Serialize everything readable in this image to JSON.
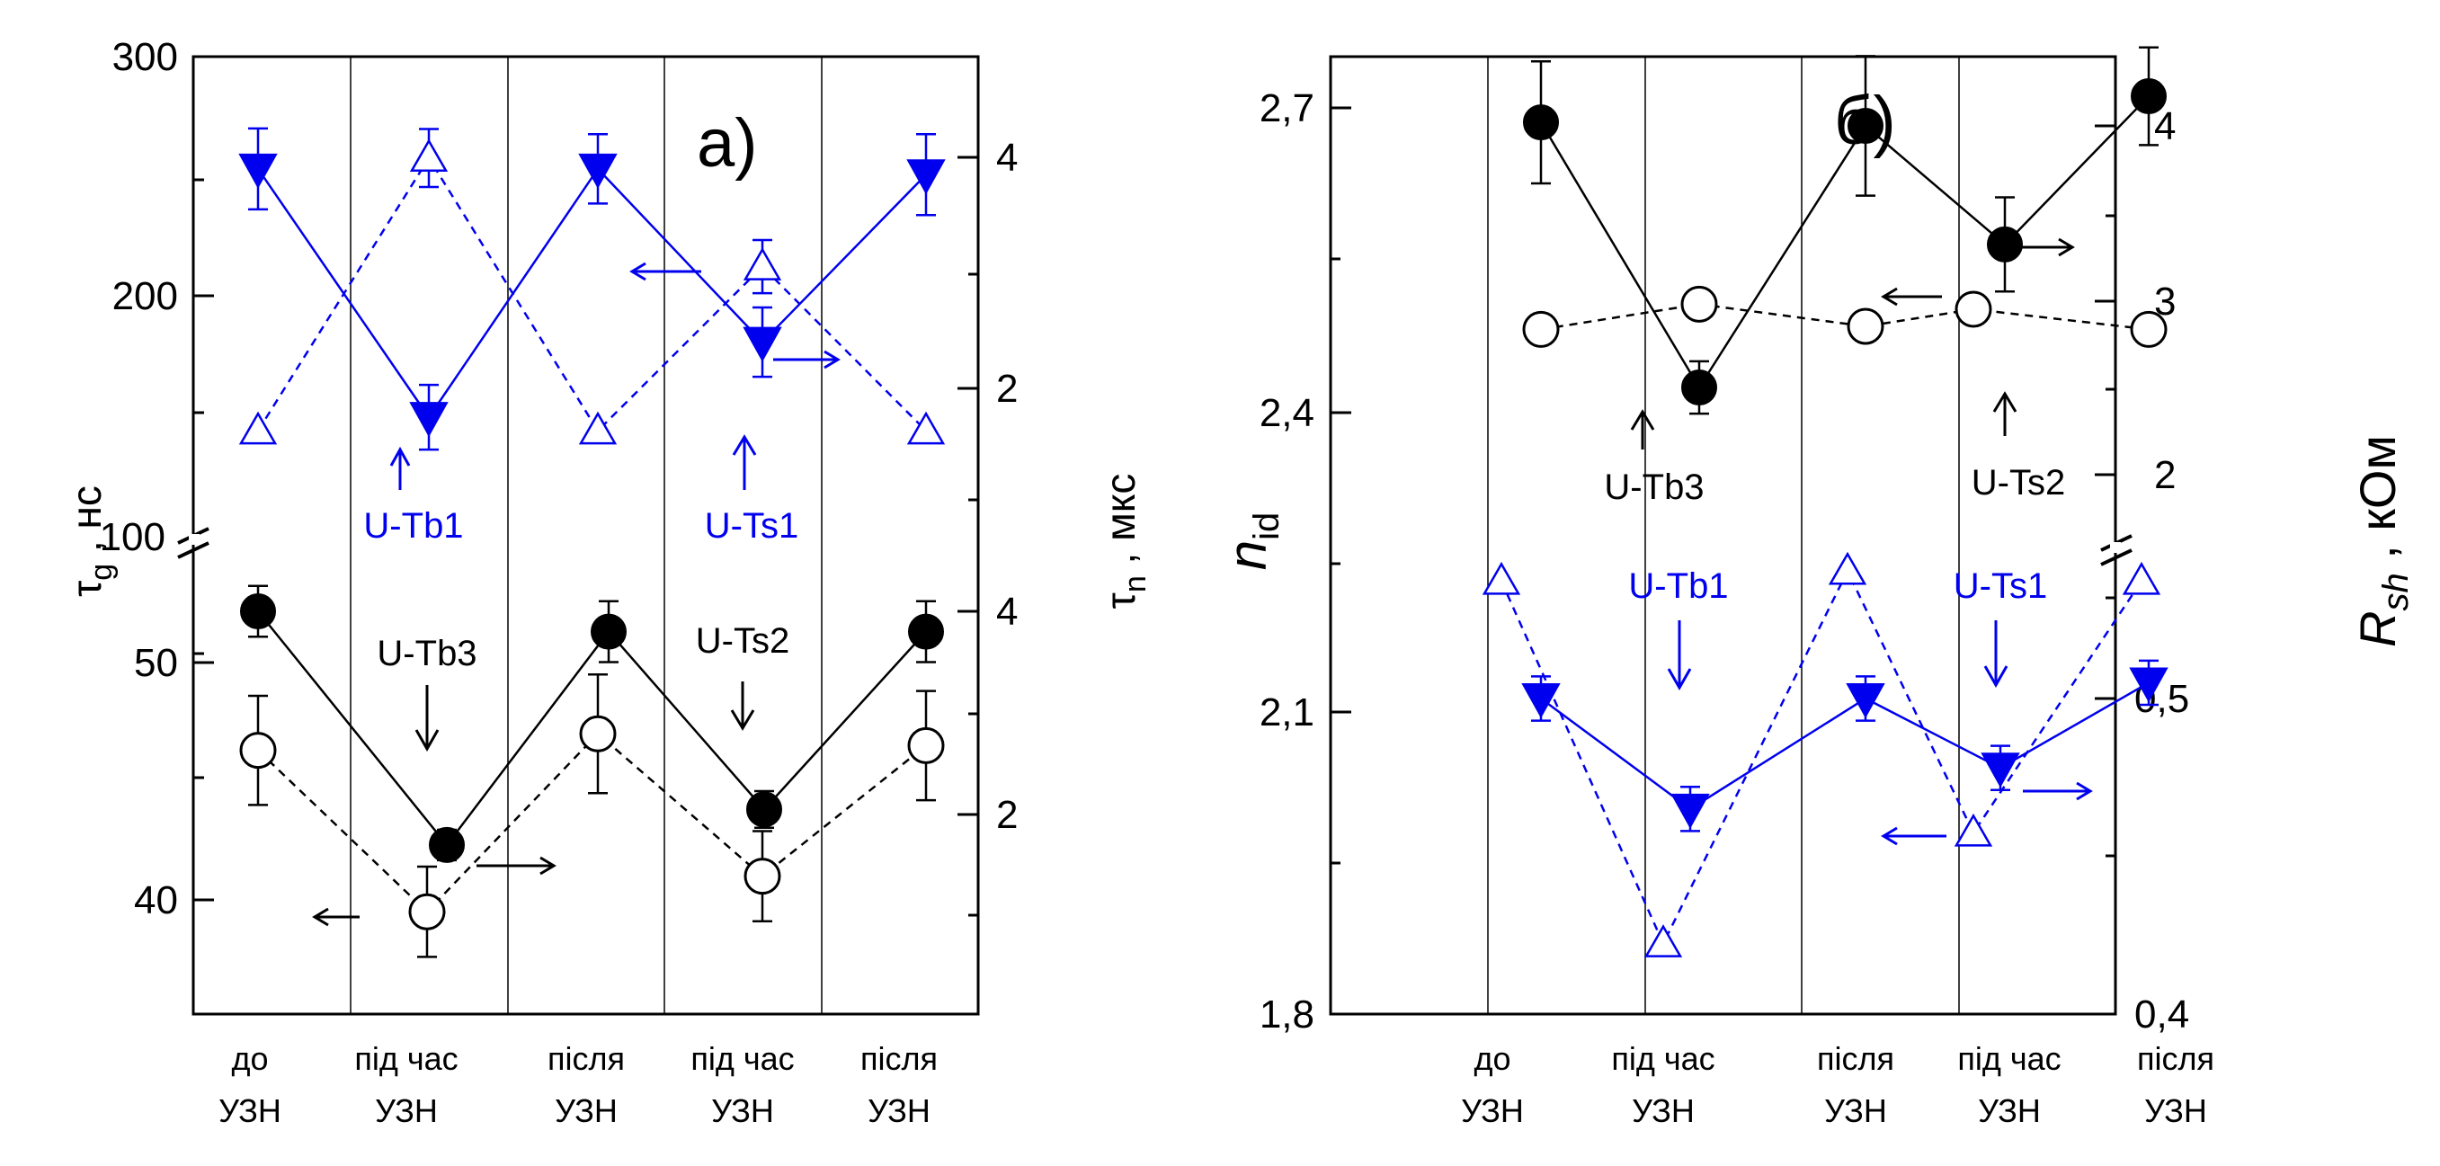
{
  "colors": {
    "black": "#000000",
    "blue": "#0000ee"
  },
  "chart_data": [
    {
      "type": "line",
      "panel_label": "а)",
      "categories": [
        "до\nУЗН",
        "під час\nУЗН",
        "після\nУЗН",
        "під час\nУЗН",
        "після\nУЗН"
      ],
      "left_axis_label": {
        "main": "τ",
        "sub": "g",
        "unit": " , нс"
      },
      "right_axis_label": {
        "main": "τ",
        "sub": "n",
        "unit": " , мкс"
      },
      "left_ticks_upper": [
        "300",
        "200",
        "100"
      ],
      "left_ticks_lower": [
        "50",
        "40"
      ],
      "right_ticks_upper": [
        "4",
        "2"
      ],
      "right_ticks_lower": [
        "4",
        "2"
      ],
      "upper_section": {
        "left_ylim": [
          100,
          300
        ],
        "right_ylim": [
          0,
          5.333
        ],
        "series": [
          {
            "sample": "U-Tb1",
            "axis": "left",
            "marker": "triangle-open-up",
            "color": "blue",
            "dashed": true,
            "values": [
              145,
              258,
              145,
              213,
              145
            ],
            "err": [
              0,
              12,
              0,
              11,
              0
            ]
          },
          {
            "sample": "U-Ts1",
            "axis": "right",
            "marker": "triangle-filled-down",
            "color": "blue",
            "dashed": false,
            "values": [
              3.9,
              1.75,
              3.9,
              2.4,
              3.85
            ],
            "err": [
              0.35,
              0.28,
              0.3,
              0.3,
              0.35
            ]
          }
        ]
      },
      "lower_section": {
        "left_ylim": [
          35.5,
          55
        ],
        "right_ylim": [
          0.25,
          5.0
        ],
        "series": [
          {
            "sample": "U-Tb3",
            "axis": "left",
            "marker": "circle-open",
            "color": "black",
            "dashed": true,
            "values": [
              46.3,
              39.5,
              47,
              41,
              46.5
            ],
            "err": [
              2.3,
              1.9,
              2.5,
              1.9,
              2.3
            ]
          },
          {
            "sample": "U-Ts2",
            "axis": "right",
            "marker": "circle-filled",
            "color": "black",
            "dashed": false,
            "values": [
              4.0,
              1.7,
              3.8,
              2.05,
              3.8
            ],
            "err": [
              0.25,
              0.15,
              0.3,
              0.18,
              0.3
            ]
          }
        ]
      },
      "annotations": [
        "U-Tb3",
        "U-Ts2",
        "U-Tb1",
        "U-Ts1"
      ]
    },
    {
      "type": "line",
      "panel_label": "б)",
      "categories": [
        "до\nУЗН",
        "під час\nУЗН",
        "після\nУЗН",
        "під час\nУЗН",
        "після\nУЗН"
      ],
      "left_axis_label": {
        "main": "n",
        "sub": "id",
        "unit": ""
      },
      "right_axis_label": {
        "main": "R",
        "sub": "sh",
        "unit": " , кОм"
      },
      "left_ticks": [
        "2,7",
        "2,4",
        "2,1",
        "1,8"
      ],
      "right_ticks_upper": [
        "4",
        "3",
        "2"
      ],
      "right_ticks_lower": [
        "0,5",
        "0,4"
      ],
      "ylim": [
        1.8,
        2.75
      ],
      "series": [
        {
          "sample": "U-Tb3",
          "axis": "left",
          "marker": "circle-open",
          "color": "black",
          "dashed": true,
          "values": [
            2.48,
            2.505,
            2.483,
            2.5,
            2.48
          ],
          "err": [
            0,
            0,
            0,
            0,
            0
          ]
        },
        {
          "sample": "U-Ts2",
          "axis": "right",
          "marker": "circle-filled",
          "color": "black",
          "dashed": false,
          "values": [
            4.02,
            2.5,
            4.0,
            3.32,
            4.17
          ],
          "err": [
            0.35,
            0.15,
            0.4,
            0.27,
            0.28
          ]
        },
        {
          "sample": "U-Tb1",
          "axis": "left",
          "marker": "triangle-open-up",
          "color": "blue",
          "dashed": true,
          "values": [
            2.23,
            1.87,
            2.24,
            1.98,
            2.23
          ],
          "err": [
            0,
            0,
            0,
            0,
            0
          ]
        },
        {
          "sample": "U-Ts1",
          "axis": "right",
          "marker": "triangle-filled-down",
          "color": "blue",
          "dashed": false,
          "values": [
            0.5,
            0.465,
            0.5,
            0.478,
            0.505
          ],
          "err": [
            0.007,
            0.007,
            0.007,
            0.007,
            0.007
          ]
        }
      ],
      "annotations": [
        "U-Tb3",
        "U-Ts2",
        "U-Tb1",
        "U-Ts1"
      ]
    }
  ]
}
